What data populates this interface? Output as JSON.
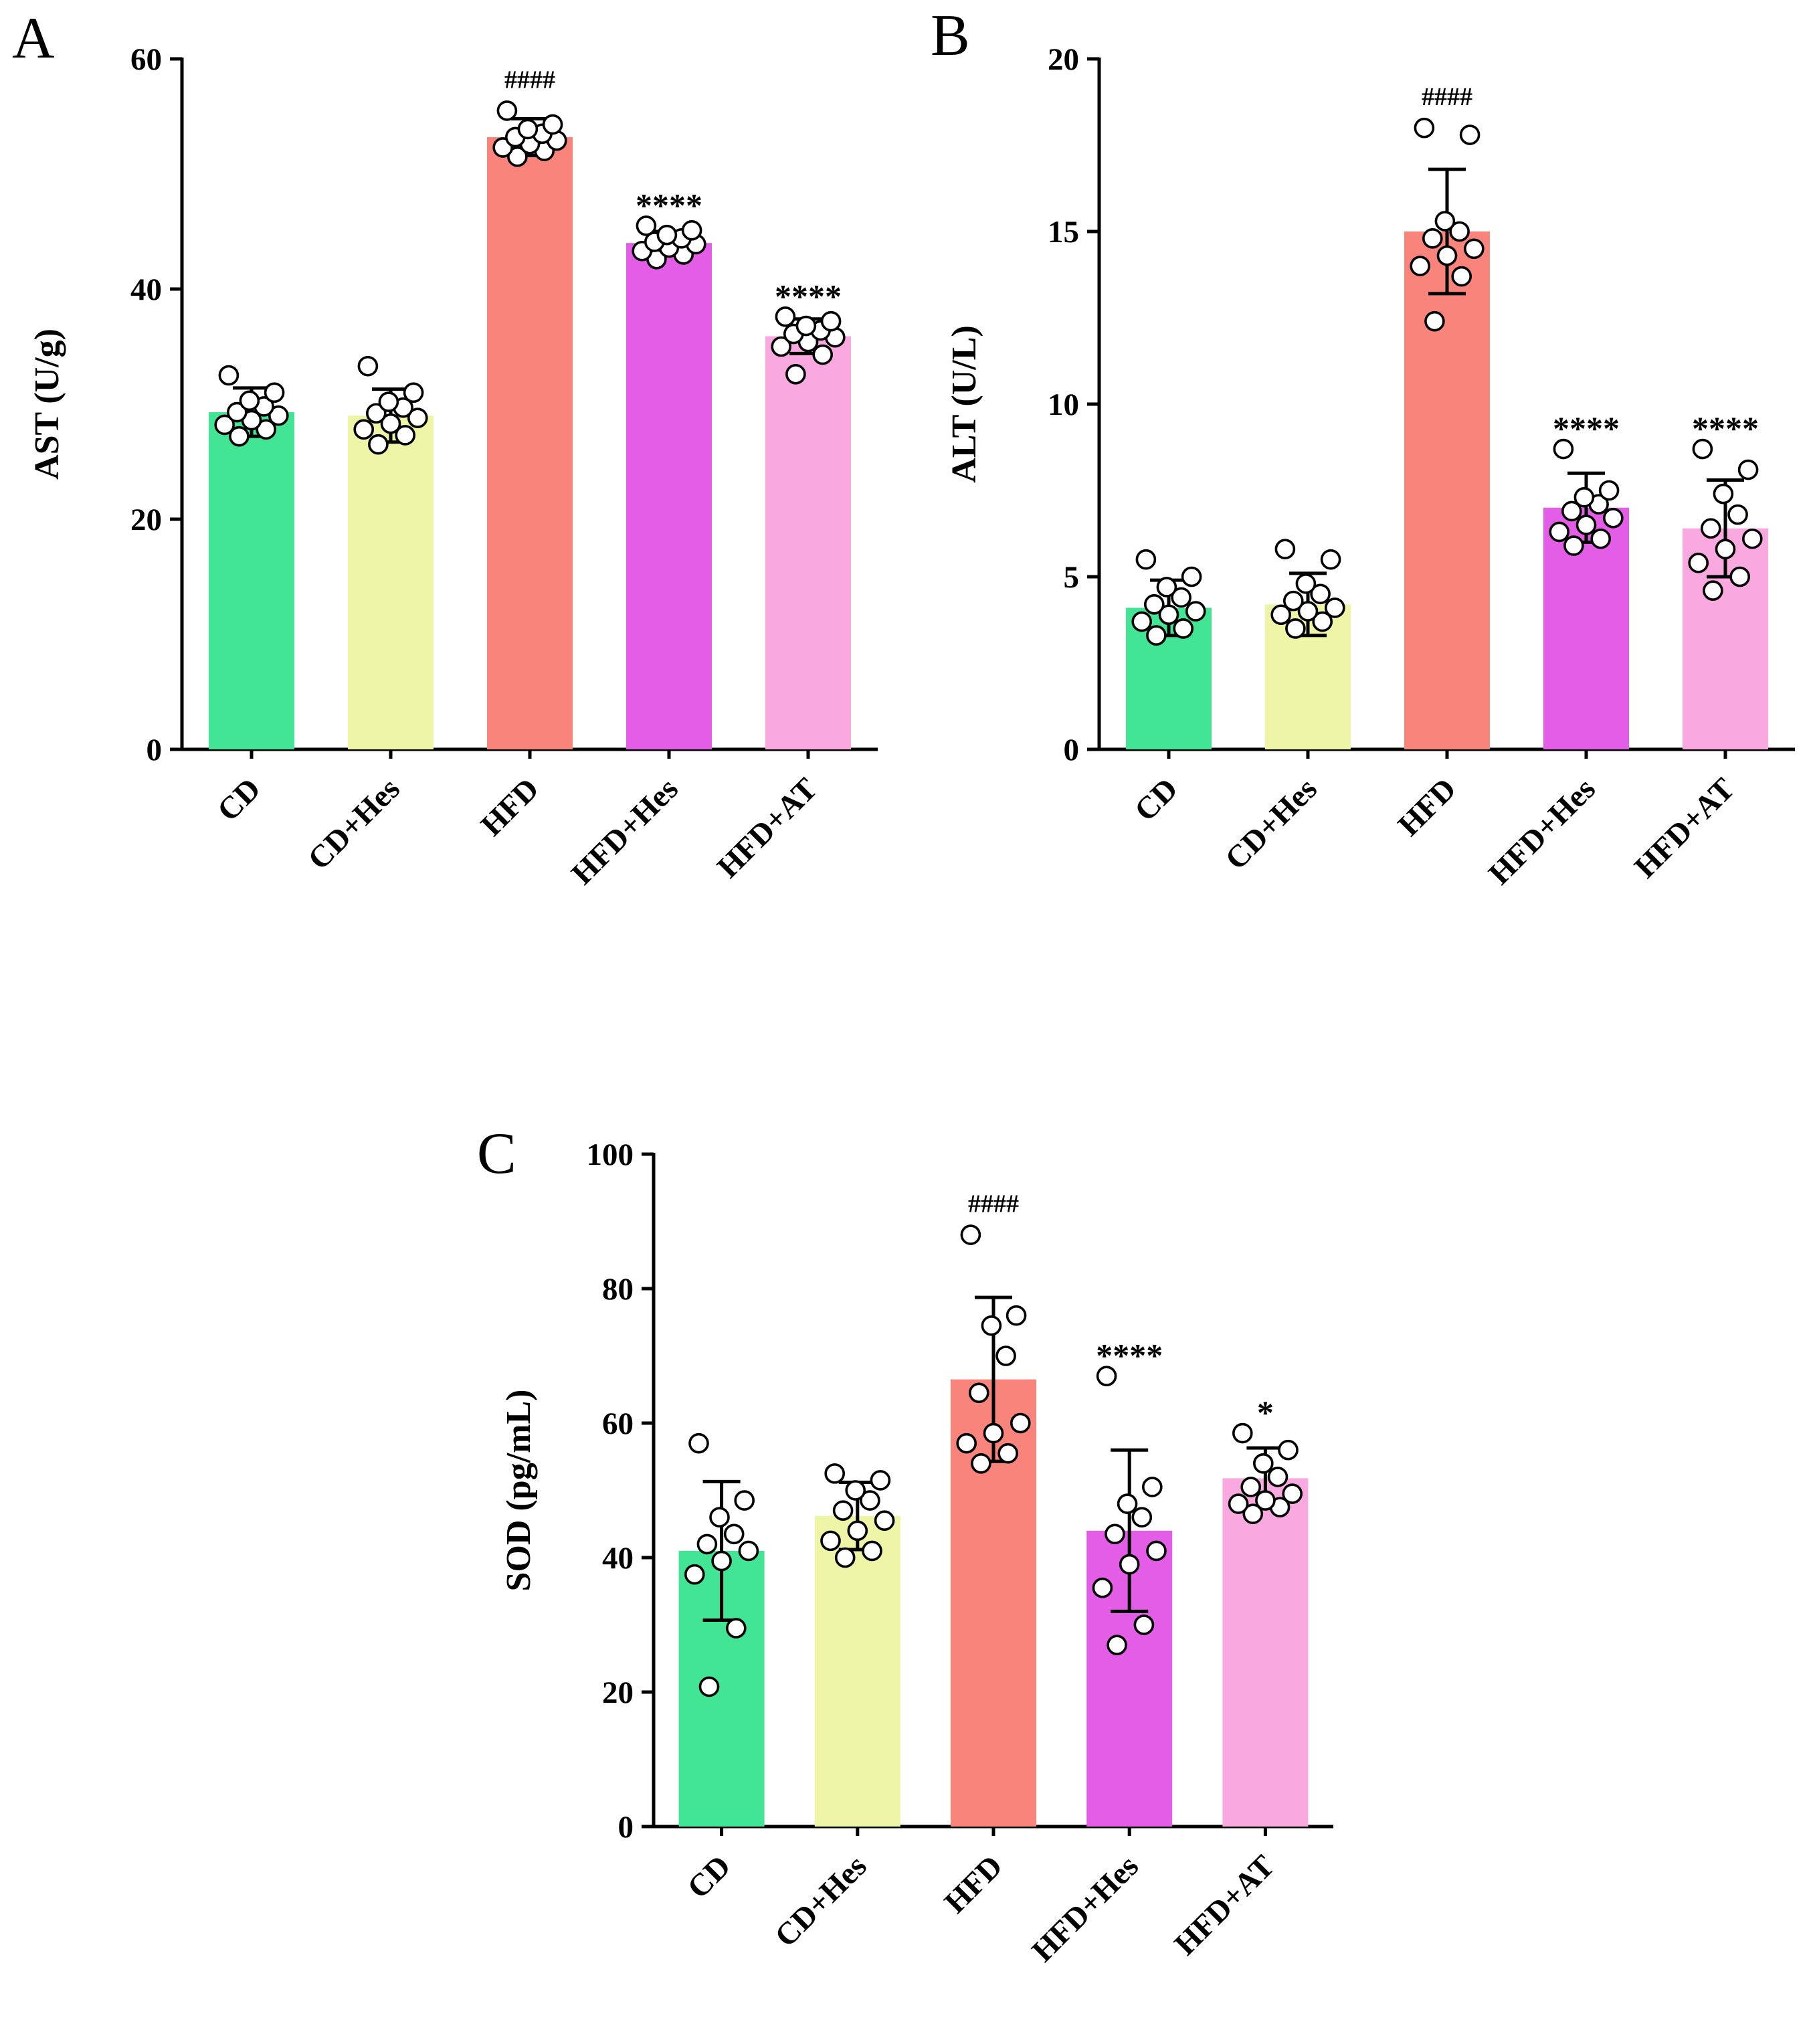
{
  "figure": {
    "background": "#ffffff",
    "panel_labels": [
      "A",
      "B",
      "C"
    ]
  },
  "chart_data": [
    {
      "type": "bar",
      "panel": "A",
      "title": "",
      "xlabel": "",
      "ylabel": "AST (U/g)",
      "ylim": [
        0,
        60
      ],
      "yticks": [
        0,
        20,
        40,
        60
      ],
      "grid": false,
      "legend": "none",
      "categories": [
        "CD",
        "CD+Hes",
        "HFD",
        "HFD+Hes",
        "HFD+AT"
      ],
      "bar_colors": [
        "#42e593",
        "#eff5a6",
        "#f9847b",
        "#e45de6",
        "#f9a9df"
      ],
      "values": [
        29.3,
        29.0,
        53.2,
        44.0,
        35.9
      ],
      "sd": [
        2.1,
        2.3,
        1.6,
        1.0,
        1.5
      ],
      "points": [
        [
          27.2,
          27.8,
          28.2,
          28.6,
          29.0,
          29.3,
          29.8,
          30.3,
          31.0,
          32.5
        ],
        [
          26.5,
          27.3,
          27.8,
          28.3,
          28.8,
          29.2,
          29.7,
          30.2,
          31.0,
          33.3
        ],
        [
          51.5,
          52.0,
          52.3,
          52.6,
          52.9,
          53.2,
          53.5,
          53.9,
          54.3,
          55.5
        ],
        [
          42.6,
          43.0,
          43.3,
          43.6,
          43.9,
          44.1,
          44.4,
          44.7,
          45.1,
          45.5
        ],
        [
          32.6,
          34.3,
          35.0,
          35.4,
          35.8,
          36.1,
          36.4,
          36.8,
          37.2,
          37.6
        ]
      ],
      "annotations": [
        "",
        "",
        "####",
        "****",
        "****"
      ]
    },
    {
      "type": "bar",
      "panel": "B",
      "title": "",
      "xlabel": "",
      "ylabel": "ALT (U/L)",
      "ylim": [
        0,
        20
      ],
      "yticks": [
        0,
        5,
        10,
        15,
        20
      ],
      "grid": false,
      "legend": "none",
      "categories": [
        "CD",
        "CD+Hes",
        "HFD",
        "HFD+Hes",
        "HFD+AT"
      ],
      "bar_colors": [
        "#42e593",
        "#eff5a6",
        "#f9847b",
        "#e45de6",
        "#f9a9df"
      ],
      "values": [
        4.1,
        4.2,
        15.0,
        7.0,
        6.4
      ],
      "sd": [
        0.8,
        0.9,
        1.8,
        1.0,
        1.4
      ],
      "points": [
        [
          3.3,
          3.5,
          3.7,
          3.9,
          4.0,
          4.2,
          4.4,
          4.7,
          5.0,
          5.5
        ],
        [
          3.5,
          3.7,
          3.9,
          4.0,
          4.1,
          4.3,
          4.5,
          4.8,
          5.5,
          5.8
        ],
        [
          12.4,
          13.7,
          14.0,
          14.3,
          14.5,
          14.8,
          15.0,
          15.3,
          17.8,
          18.0
        ],
        [
          5.9,
          6.1,
          6.3,
          6.5,
          6.7,
          6.9,
          7.1,
          7.3,
          7.5,
          8.7
        ],
        [
          4.6,
          5.0,
          5.4,
          5.8,
          6.1,
          6.4,
          6.8,
          7.4,
          8.1,
          8.7
        ]
      ],
      "annotations": [
        "",
        "",
        "####",
        "****",
        "****"
      ]
    },
    {
      "type": "bar",
      "panel": "C",
      "title": "",
      "xlabel": "",
      "ylabel": "SOD (pg/mL)",
      "ylim": [
        0,
        100
      ],
      "yticks": [
        0,
        20,
        40,
        60,
        80,
        100
      ],
      "grid": false,
      "legend": "none",
      "categories": [
        "CD",
        "CD+Hes",
        "HFD",
        "HFD+Hes",
        "HFD+AT"
      ],
      "bar_colors": [
        "#42e593",
        "#eff5a6",
        "#f9847b",
        "#e45de6",
        "#f9a9df"
      ],
      "values": [
        41.0,
        46.2,
        66.5,
        44.0,
        51.8
      ],
      "sd": [
        10.3,
        5.0,
        12.2,
        12.0,
        4.5
      ],
      "points": [
        [
          20.8,
          29.5,
          37.5,
          39.5,
          41.0,
          42.0,
          43.5,
          46.0,
          48.5,
          57.0
        ],
        [
          40.0,
          41.0,
          42.5,
          44.0,
          45.5,
          47.0,
          48.5,
          50.0,
          51.5,
          52.5
        ],
        [
          54.0,
          55.5,
          57.0,
          58.5,
          60.0,
          64.5,
          70.0,
          74.5,
          76.0,
          88.0
        ],
        [
          27.0,
          30.0,
          35.5,
          39.0,
          41.0,
          43.5,
          46.0,
          48.0,
          50.5,
          67.0
        ],
        [
          46.5,
          47.5,
          48.0,
          48.5,
          49.5,
          50.5,
          52.0,
          54.0,
          56.0,
          58.5
        ]
      ],
      "annotations": [
        "",
        "",
        "####",
        "****",
        "*"
      ]
    }
  ],
  "style_tokens": {
    "axis_color": "#000000",
    "point_fill": "#ffffff",
    "point_stroke": "#000000",
    "annotation_color": "#000000"
  }
}
